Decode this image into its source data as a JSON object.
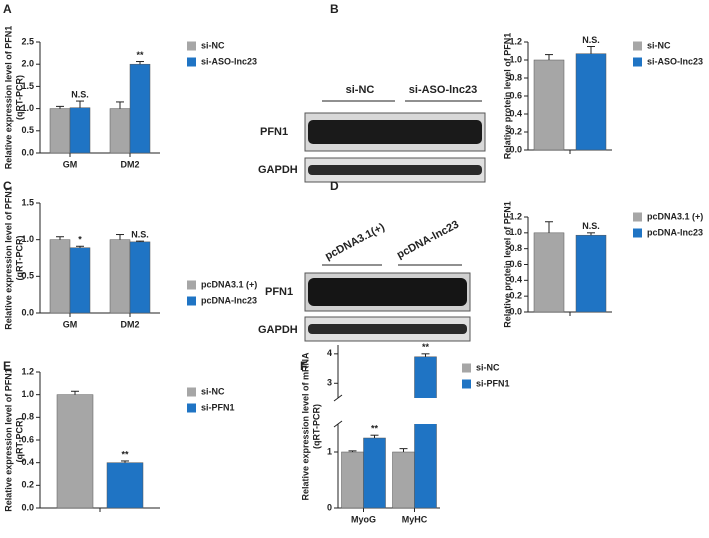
{
  "chart_data": [
    {
      "type": "bar",
      "panel": "A",
      "ylabel": [
        "Relative expression level of PFN1",
        "(qRT-PCR)"
      ],
      "categories": [
        "GM",
        "DM2"
      ],
      "series": [
        {
          "name": "si-NC",
          "color": "#a6a6a6",
          "values": [
            1.0,
            1.0
          ],
          "errors": [
            0.05,
            0.15
          ],
          "significance": [
            null,
            null
          ]
        },
        {
          "name": "si-ASO-lnc23",
          "color": "#1f74c4",
          "values": [
            1.02,
            2.0
          ],
          "errors": [
            0.15,
            0.06
          ],
          "significance": [
            "N.S.",
            "**"
          ]
        }
      ],
      "ylim": [
        0,
        2.5
      ],
      "yticks": [
        {
          "value": 0,
          "label": "0.0"
        },
        {
          "value": 0.5,
          "label": "0.5"
        },
        {
          "value": 1,
          "label": "1.0"
        },
        {
          "value": 1.5,
          "label": "1.5"
        },
        {
          "value": 2,
          "label": "2.0"
        },
        {
          "value": 2.5,
          "label": "2.5"
        }
      ]
    },
    {
      "type": "bar",
      "panel": "B",
      "ylabel": [
        "Relative protein level of PFN1"
      ],
      "categories": [
        null
      ],
      "series": [
        {
          "name": "si-NC",
          "color": "#a6a6a6",
          "values": [
            1.0
          ],
          "errors": [
            0.06
          ],
          "significance": [
            null
          ]
        },
        {
          "name": "si-ASO-lnc23",
          "color": "#1f74c4",
          "values": [
            1.07
          ],
          "errors": [
            0.08
          ],
          "significance": [
            "N.S."
          ]
        }
      ],
      "ylim": [
        0,
        1.2
      ],
      "yticks": [
        {
          "value": 0,
          "label": "0.0"
        },
        {
          "value": 0.2,
          "label": "0.2"
        },
        {
          "value": 0.4,
          "label": "0.4"
        },
        {
          "value": 0.6,
          "label": "0.6"
        },
        {
          "value": 0.8,
          "label": "0.8"
        },
        {
          "value": 1,
          "label": "1.0"
        },
        {
          "value": 1.2,
          "label": "1.2"
        }
      ]
    },
    {
      "type": "bar",
      "panel": "C",
      "ylabel": [
        "Relative expression level of PFN1",
        "(qRT-PCR)"
      ],
      "categories": [
        "GM",
        "DM2"
      ],
      "series": [
        {
          "name": "pcDNA3.1 (+)",
          "color": "#a6a6a6",
          "values": [
            1.0,
            1.0
          ],
          "errors": [
            0.04,
            0.07
          ],
          "significance": [
            null,
            null
          ]
        },
        {
          "name": "pcDNA-lnc23",
          "color": "#1f74c4",
          "values": [
            0.89,
            0.97
          ],
          "errors": [
            0.02,
            0.01
          ],
          "significance": [
            "*",
            "N.S."
          ]
        }
      ],
      "ylim": [
        0,
        1.5
      ],
      "yticks": [
        {
          "value": 0,
          "label": "0.0"
        },
        {
          "value": 0.5,
          "label": "0.5"
        },
        {
          "value": 1,
          "label": "1.0"
        },
        {
          "value": 1.5,
          "label": "1.5"
        }
      ]
    },
    {
      "type": "bar",
      "panel": "D",
      "ylabel": [
        "Relative protein level of PFN1"
      ],
      "categories": [
        null
      ],
      "series": [
        {
          "name": "pcDNA3.1 (+)",
          "color": "#a6a6a6",
          "values": [
            1.0
          ],
          "errors": [
            0.14
          ],
          "significance": [
            null
          ]
        },
        {
          "name": "pcDNA-lnc23",
          "color": "#1f74c4",
          "values": [
            0.97
          ],
          "errors": [
            0.03
          ],
          "significance": [
            "N.S."
          ]
        }
      ],
      "ylim": [
        0,
        1.2
      ],
      "yticks": [
        {
          "value": 0,
          "label": "0.0"
        },
        {
          "value": 0.2,
          "label": "0.2"
        },
        {
          "value": 0.4,
          "label": "0.4"
        },
        {
          "value": 0.6,
          "label": "0.6"
        },
        {
          "value": 0.8,
          "label": "0.8"
        },
        {
          "value": 1,
          "label": "1.0"
        },
        {
          "value": 1.2,
          "label": "1.2"
        }
      ]
    },
    {
      "type": "bar",
      "panel": "E",
      "ylabel": [
        "Relative expression level of PFN1",
        "(qRT-PCR)"
      ],
      "categories": [
        null
      ],
      "series": [
        {
          "name": "si-NC",
          "color": "#a6a6a6",
          "values": [
            1.0
          ],
          "errors": [
            0.03
          ],
          "significance": [
            null
          ]
        },
        {
          "name": "si-PFN1",
          "color": "#1f74c4",
          "values": [
            0.4
          ],
          "errors": [
            0.015
          ],
          "significance": [
            "**"
          ]
        }
      ],
      "ylim": [
        0,
        1.2
      ],
      "yticks": [
        {
          "value": 0,
          "label": "0.0"
        },
        {
          "value": 0.2,
          "label": "0.2"
        },
        {
          "value": 0.4,
          "label": "0.4"
        },
        {
          "value": 0.6,
          "label": "0.6"
        },
        {
          "value": 0.8,
          "label": "0.8"
        },
        {
          "value": 1,
          "label": "1.0"
        },
        {
          "value": 1.2,
          "label": "1.2"
        }
      ]
    },
    {
      "type": "bar",
      "panel": "F",
      "ylabel": [
        "Relative expression level of mRNA",
        "(qRT-PCR)"
      ],
      "categories": [
        "MyoG",
        "MyHC"
      ],
      "series": [
        {
          "name": "si-NC",
          "color": "#a6a6a6",
          "values": [
            1.0,
            1.0
          ],
          "errors": [
            0.02,
            0.06
          ],
          "significance": [
            null,
            null
          ]
        },
        {
          "name": "si-PFN1",
          "color": "#1f74c4",
          "values": [
            1.25,
            3.9
          ],
          "errors": [
            0.05,
            0.1
          ],
          "significance": [
            "**",
            "**"
          ]
        }
      ],
      "ylim": [
        0,
        4.3
      ],
      "axis_break": [
        1.5,
        2.5
      ],
      "yticks": [
        0,
        1,
        3,
        4
      ]
    }
  ],
  "blots": [
    {
      "lanes": [
        "si-NC",
        "si-ASO-lnc23"
      ],
      "rows": [
        "PFN1",
        "GAPDH"
      ]
    },
    {
      "lanes": [
        "pcDNA3.1(+)",
        "pcDNA-lnc23"
      ],
      "rows": [
        "PFN1",
        "GAPDH"
      ]
    }
  ]
}
